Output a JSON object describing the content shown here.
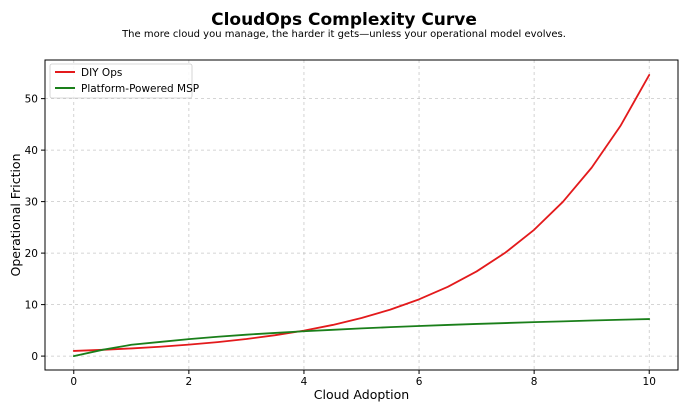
{
  "chart_data": {
    "type": "line",
    "title": "CloudOps Complexity Curve",
    "subtitle": "The more cloud you manage, the harder it gets—unless your operational model evolves.",
    "xlabel": "Cloud Adoption",
    "ylabel": "Operational Friction",
    "xlim": [
      -0.5,
      10.5
    ],
    "ylim": [
      -2.7,
      57.5
    ],
    "xticks": [
      0,
      2,
      4,
      6,
      8,
      10
    ],
    "yticks": [
      0,
      10,
      20,
      30,
      40,
      50
    ],
    "grid": true,
    "legend_position": "top-left",
    "x": [
      0,
      0.5,
      1,
      1.5,
      2,
      2.5,
      3,
      3.5,
      4,
      4.5,
      5,
      5.5,
      6,
      6.5,
      7,
      7.5,
      8,
      8.5,
      9,
      9.5,
      10
    ],
    "series": [
      {
        "name": "DIY Ops",
        "color": "#e31a1c",
        "values": [
          1.0,
          1.22,
          1.49,
          1.82,
          2.23,
          2.72,
          3.32,
          4.06,
          4.95,
          6.05,
          7.39,
          9.03,
          11.02,
          13.46,
          16.44,
          20.09,
          24.53,
          29.96,
          36.6,
          44.7,
          54.6
        ]
      },
      {
        "name": "Platform-Powered MSP",
        "color": "#1a7f1a",
        "values": [
          0.0,
          1.22,
          2.2,
          2.75,
          3.3,
          3.75,
          4.16,
          4.5,
          4.83,
          5.1,
          5.38,
          5.62,
          5.84,
          6.05,
          6.24,
          6.42,
          6.59,
          6.75,
          6.91,
          7.06,
          7.19
        ]
      }
    ]
  }
}
